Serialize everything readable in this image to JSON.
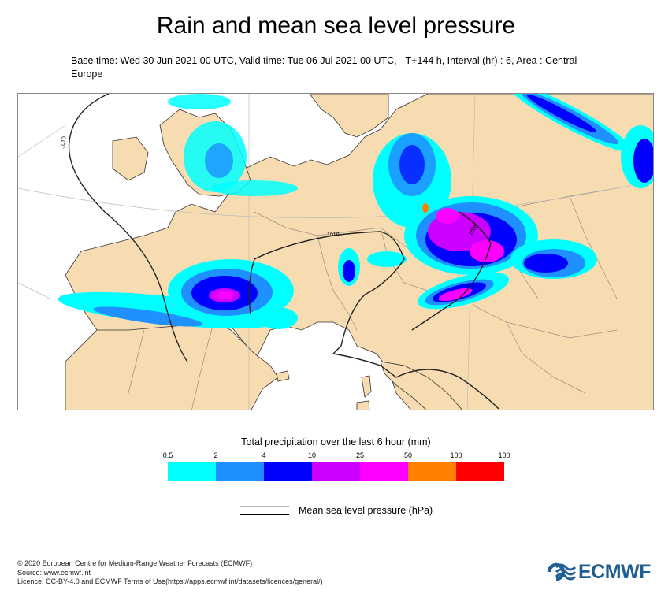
{
  "header": {
    "title": "Rain and mean sea level pressure",
    "subtitle": "Base time: Wed 30 Jun 2021 00 UTC, Valid time: Tue 06 Jul 2021 00 UTC, - T+144 h, Interval (hr) : 6, Area : Central Europe"
  },
  "map": {
    "isobar_labels": [
      "1010",
      "1010",
      "1005"
    ],
    "colors": {
      "land": "#f8dcb1",
      "sea": "#ffffff",
      "borders": "#9a8f82",
      "coast": "#333333"
    }
  },
  "colorbar": {
    "title": "Total precipitation over the last 6 hour (mm)",
    "ticks": [
      "0.5",
      "2",
      "4",
      "10",
      "25",
      "50",
      "100",
      "100"
    ],
    "colors": [
      "#00ffff",
      "#1e90ff",
      "#0000ff",
      "#cc00ff",
      "#ff00ff",
      "#ff8000",
      "#ff0000"
    ]
  },
  "legend": {
    "pressure_label": "Mean sea level pressure (hPa)"
  },
  "footer": {
    "line1": "© 2020 European Centre for Medium-Range Weather Forecasts (ECMWF)",
    "line2": "Source: www.ecmwf.int",
    "line3": "Licence: CC-BY-4.0 and ECMWF Terms of Use(https://apps.ecmwf.int/datasets/licences/general/)"
  },
  "logo": {
    "text": "ECMWF",
    "color": "#1f5f93",
    "icon": "ecmwf-wave-icon"
  }
}
